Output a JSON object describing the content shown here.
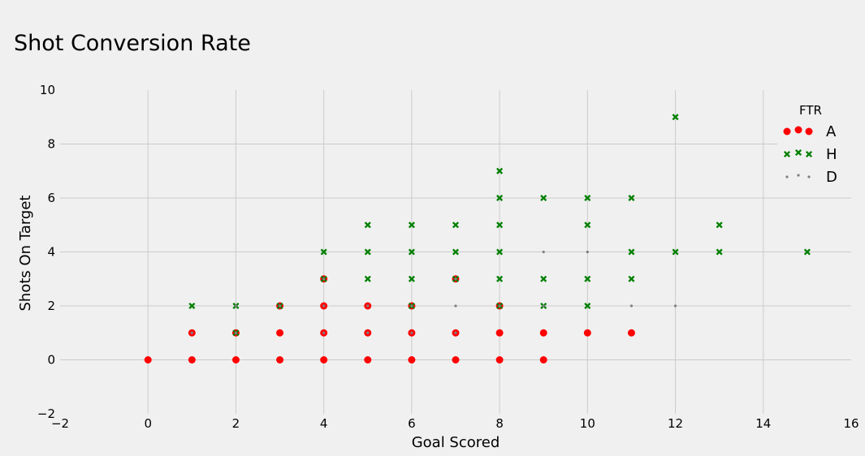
{
  "chart_data": {
    "type": "scatter",
    "title": "Shot Conversion Rate",
    "xlabel": "Goal Scored",
    "ylabel": "Shots On Target",
    "xlim": [
      -2,
      16
    ],
    "ylim": [
      -2,
      10
    ],
    "xticks": [
      -2,
      0,
      2,
      4,
      6,
      8,
      10,
      12,
      14,
      16
    ],
    "yticks": [
      -2,
      0,
      2,
      4,
      6,
      8,
      10
    ],
    "grid": true,
    "legend": {
      "title": "FTR",
      "position": "top-right"
    },
    "colors": {
      "A": "#ff0000",
      "H": "#008000",
      "D": "#808080"
    },
    "series": [
      {
        "name": "A",
        "marker": "circle",
        "points": [
          [
            0,
            0
          ],
          [
            1,
            0
          ],
          [
            2,
            0
          ],
          [
            3,
            0
          ],
          [
            4,
            0
          ],
          [
            5,
            0
          ],
          [
            6,
            0
          ],
          [
            7,
            0
          ],
          [
            8,
            0
          ],
          [
            9,
            0
          ],
          [
            1,
            1
          ],
          [
            2,
            1
          ],
          [
            3,
            1
          ],
          [
            4,
            1
          ],
          [
            5,
            1
          ],
          [
            6,
            1
          ],
          [
            7,
            1
          ],
          [
            8,
            1
          ],
          [
            9,
            1
          ],
          [
            10,
            1
          ],
          [
            11,
            1
          ],
          [
            3,
            2
          ],
          [
            4,
            2
          ],
          [
            5,
            2
          ],
          [
            6,
            2
          ],
          [
            8,
            2
          ],
          [
            4,
            3
          ],
          [
            7,
            3
          ]
        ]
      },
      {
        "name": "H",
        "marker": "x",
        "points": [
          [
            2,
            1
          ],
          [
            1,
            2
          ],
          [
            2,
            2
          ],
          [
            3,
            2
          ],
          [
            6,
            2
          ],
          [
            8,
            2
          ],
          [
            9,
            2
          ],
          [
            10,
            2
          ],
          [
            4,
            3
          ],
          [
            5,
            3
          ],
          [
            6,
            3
          ],
          [
            7,
            3
          ],
          [
            8,
            3
          ],
          [
            9,
            3
          ],
          [
            10,
            3
          ],
          [
            11,
            3
          ],
          [
            4,
            4
          ],
          [
            5,
            4
          ],
          [
            6,
            4
          ],
          [
            7,
            4
          ],
          [
            8,
            4
          ],
          [
            11,
            4
          ],
          [
            12,
            4
          ],
          [
            13,
            4
          ],
          [
            15,
            4
          ],
          [
            5,
            5
          ],
          [
            6,
            5
          ],
          [
            7,
            5
          ],
          [
            8,
            5
          ],
          [
            10,
            5
          ],
          [
            13,
            5
          ],
          [
            8,
            6
          ],
          [
            9,
            6
          ],
          [
            10,
            6
          ],
          [
            11,
            6
          ],
          [
            8,
            7
          ],
          [
            12,
            9
          ]
        ]
      },
      {
        "name": "D",
        "marker": "point",
        "points": [
          [
            1,
            1
          ],
          [
            2,
            1
          ],
          [
            4,
            1
          ],
          [
            5,
            1
          ],
          [
            6,
            1
          ],
          [
            7,
            1
          ],
          [
            2,
            2
          ],
          [
            3,
            2
          ],
          [
            4,
            2
          ],
          [
            5,
            2
          ],
          [
            6,
            2
          ],
          [
            7,
            2
          ],
          [
            8,
            2
          ],
          [
            9,
            2
          ],
          [
            11,
            2
          ],
          [
            12,
            2
          ],
          [
            4,
            3
          ],
          [
            7,
            3
          ],
          [
            9,
            4
          ],
          [
            10,
            4
          ]
        ]
      }
    ]
  }
}
